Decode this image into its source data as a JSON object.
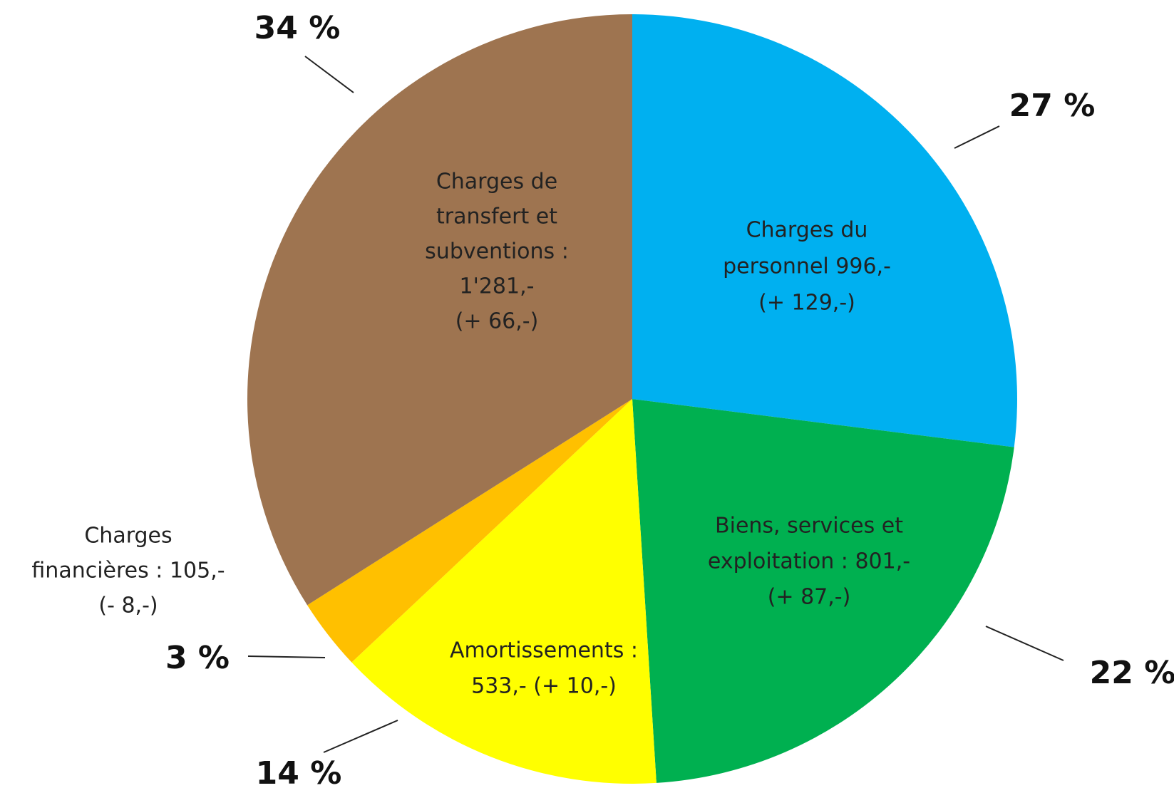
{
  "chart_data": {
    "type": "pie",
    "categories": [
      [
        "Charges du",
        "personnel  996,-",
        "(+ 129,-)"
      ],
      [
        "Biens, services et",
        "exploitation : 801,-",
        "(+ 87,-)"
      ],
      [
        "Amortissements :",
        "533,- (+ 10,-)"
      ],
      [
        "Charges",
        "financières : 105,-",
        "(- 8,-)"
      ],
      [
        "Charges de",
        "transfert et",
        "subventions :",
        "1'281,-",
        "(+ 66,-)"
      ]
    ],
    "values": [
      27,
      22,
      14,
      3,
      34
    ],
    "value_labels": [
      "27 %",
      "22 %",
      "14 %",
      "3 %",
      "34 %"
    ],
    "colors": [
      "#00b0f0",
      "#00b050",
      "#ffff00",
      "#ffc000",
      "#9e7450"
    ]
  }
}
